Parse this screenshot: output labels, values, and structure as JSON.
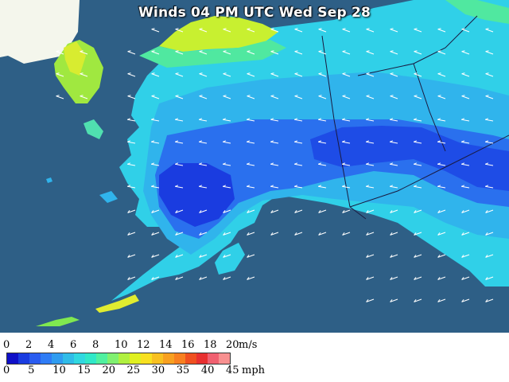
{
  "title": "Winds 04 PM UTC Wed Sep 28",
  "legend": {
    "ms_ticks": [
      "0",
      "2",
      "4",
      "6",
      "8",
      "10",
      "12",
      "14",
      "16",
      "18",
      "20"
    ],
    "ms_unit": "m/s",
    "mph_ticks": [
      "0",
      "5",
      "10",
      "15",
      "20",
      "25",
      "30",
      "35",
      "40",
      "45"
    ],
    "mph_unit": "mph",
    "colors": [
      "#1010c8",
      "#1a3ce0",
      "#2a5cf0",
      "#2f7cf5",
      "#2f9cf0",
      "#30bce8",
      "#30d8e0",
      "#30e8c8",
      "#50f0a0",
      "#80f070",
      "#b0f040",
      "#e0f020",
      "#f8e020",
      "#f8c020",
      "#f8a020",
      "#f88020",
      "#f05020",
      "#e83030",
      "#f06070",
      "#f89090"
    ]
  },
  "colors": {
    "ocean": "#2e5f86",
    "land_outside": "#f4f6ec",
    "border_line": "#1a1a40"
  }
}
